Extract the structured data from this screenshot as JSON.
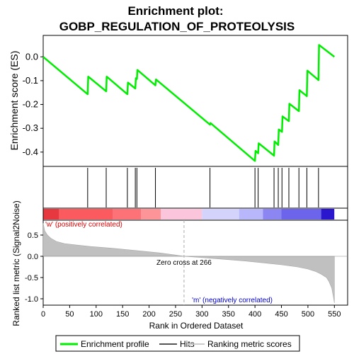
{
  "chart_data": {
    "type": "line",
    "title_lines": [
      "Enrichment plot:",
      "GOBP_REGULATION_OF_PROTEOLYSIS"
    ],
    "top_panel": {
      "ylabel": "Enrichment score (ES)",
      "ylim": [
        -0.46,
        0.09
      ],
      "yticks": [
        "0.0",
        "-0.1",
        "-0.2",
        "-0.3",
        "-0.4"
      ],
      "ytick_values": [
        0.0,
        -0.1,
        -0.2,
        -0.3,
        -0.4
      ],
      "series": [
        {
          "name": "Enrichment profile",
          "color": "#00ee00",
          "x": [
            0,
            84,
            85,
            119,
            120,
            159,
            160,
            174,
            175,
            177,
            178,
            212,
            213,
            315,
            316,
            400,
            401,
            406,
            407,
            436,
            437,
            444,
            445,
            451,
            452,
            464,
            465,
            483,
            484,
            498,
            499,
            520,
            521,
            550
          ],
          "y": [
            0.0,
            -0.157,
            -0.083,
            -0.145,
            -0.083,
            -0.157,
            -0.108,
            -0.133,
            -0.09,
            -0.093,
            -0.055,
            -0.12,
            -0.095,
            -0.285,
            -0.278,
            -0.437,
            -0.395,
            -0.405,
            -0.363,
            -0.415,
            -0.355,
            -0.37,
            -0.305,
            -0.315,
            -0.25,
            -0.27,
            -0.197,
            -0.228,
            -0.14,
            -0.165,
            -0.058,
            -0.098,
            0.05,
            0.0
          ]
        }
      ]
    },
    "hits": [
      84,
      119,
      159,
      174,
      177,
      212,
      315,
      400,
      406,
      436,
      444,
      451,
      464,
      483,
      498,
      520
    ],
    "bottom_panel": {
      "ylabel": "Ranked list metric (Signal2Noise)",
      "ylim": [
        -1.15,
        0.85
      ],
      "yticks": [
        "0.5",
        "0.0",
        "-0.5",
        "-1.0"
      ],
      "ytick_values": [
        0.5,
        0.0,
        -0.5,
        -1.0
      ],
      "metric_curve": {
        "x": [
          0,
          3,
          8,
          15,
          25,
          40,
          60,
          90,
          130,
          180,
          220,
          250,
          266,
          300,
          340,
          380,
          420,
          450,
          480,
          500,
          515,
          525,
          535,
          540,
          545,
          548,
          550
        ],
        "y": [
          0.78,
          0.6,
          0.5,
          0.42,
          0.35,
          0.3,
          0.27,
          0.23,
          0.19,
          0.13,
          0.08,
          0.03,
          0.0,
          -0.03,
          -0.07,
          -0.11,
          -0.16,
          -0.2,
          -0.25,
          -0.3,
          -0.36,
          -0.42,
          -0.5,
          -0.6,
          -0.75,
          -0.95,
          -1.1
        ]
      },
      "zero_cross_label": "Zero cross at 266",
      "zero_cross": 266,
      "pos_label": "'w' (positively correlated)",
      "neg_label": "'m' (negatively correlated)"
    },
    "xlabel": "Rank in Ordered Dataset",
    "xlim": [
      0,
      575
    ],
    "xticks": [
      "0",
      "50",
      "100",
      "150",
      "200",
      "250",
      "300",
      "350",
      "400",
      "450",
      "500",
      "550"
    ],
    "xtick_values": [
      0,
      50,
      100,
      150,
      200,
      250,
      300,
      350,
      400,
      450,
      500,
      550
    ],
    "color_bar_segments": [
      {
        "from": 0,
        "to": 30,
        "color": "#e8383f"
      },
      {
        "from": 30,
        "to": 132,
        "color": "#fb5a5f"
      },
      {
        "from": 132,
        "to": 185,
        "color": "#fc7276"
      },
      {
        "from": 185,
        "to": 222,
        "color": "#fd9598"
      },
      {
        "from": 222,
        "to": 300,
        "color": "#fbc6dc"
      },
      {
        "from": 300,
        "to": 370,
        "color": "#d4d3fc"
      },
      {
        "from": 370,
        "to": 415,
        "color": "#b9b7fb"
      },
      {
        "from": 415,
        "to": 450,
        "color": "#8b86f2"
      },
      {
        "from": 450,
        "to": 525,
        "color": "#6c65ec"
      },
      {
        "from": 525,
        "to": 550,
        "color": "#2a16cc"
      }
    ],
    "legend": [
      {
        "label": "Enrichment profile",
        "color": "#00ee00"
      },
      {
        "label": "Hits",
        "color": "#555555"
      },
      {
        "label": "Ranking metric scores",
        "color": "#cccccc"
      }
    ]
  }
}
